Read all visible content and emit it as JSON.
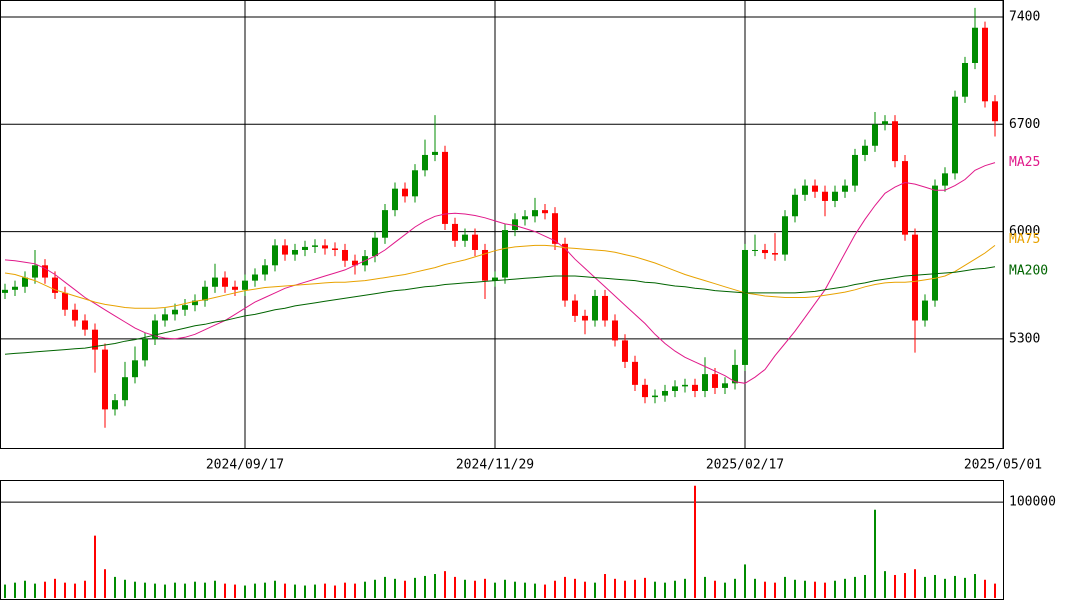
{
  "chart_data": {
    "type": "candlestick",
    "xlim": [
      0,
      100.3
    ],
    "xticks": [
      {
        "value": 24.5,
        "label": "2024/09/17"
      },
      {
        "value": 49.5,
        "label": "2024/11/29"
      },
      {
        "value": 74.5,
        "label": "2025/02/17"
      },
      {
        "value": 100.3,
        "label": "2025/05/01"
      }
    ],
    "ylim": [
      4588,
      7511
    ],
    "yticks": [
      5300,
      6000,
      6700,
      7400
    ],
    "grid": true,
    "up_color": "#008c00",
    "down_color": "#ff0000",
    "candles": {
      "open": [
        5600,
        5620,
        5640,
        5700,
        5780,
        5700,
        5600,
        5490,
        5420,
        5360,
        5230,
        4840,
        4900,
        5050,
        5160,
        5300,
        5420,
        5460,
        5490,
        5520,
        5550,
        5640,
        5700,
        5640,
        5620,
        5680,
        5720,
        5780,
        5910,
        5850,
        5880,
        5900,
        5910,
        5890,
        5880,
        5810,
        5780,
        5840,
        5960,
        6140,
        6280,
        6230,
        6400,
        6500,
        6520,
        6050,
        5940,
        5980,
        5880,
        5680,
        5700,
        6010,
        6080,
        6100,
        6140,
        6120,
        5920,
        5550,
        5450,
        5420,
        5580,
        5420,
        5290,
        5150,
        5000,
        4920,
        4930,
        4960,
        4990,
        5000,
        4960,
        5070,
        4980,
        5010,
        5130,
        5880,
        5880,
        5860,
        5850,
        6100,
        6240,
        6300,
        6260,
        6200,
        6260,
        6300,
        6500,
        6560,
        6700,
        6720,
        6460,
        5980,
        5420,
        5550,
        6300,
        6380,
        6880,
        7100,
        7330,
        6850
      ],
      "high": [
        5660,
        5680,
        5740,
        5880,
        5820,
        5740,
        5640,
        5530,
        5460,
        5400,
        5270,
        4940,
        5150,
        5250,
        5340,
        5460,
        5500,
        5530,
        5560,
        5590,
        5680,
        5790,
        5740,
        5680,
        5720,
        5760,
        5820,
        5950,
        5950,
        5920,
        5940,
        5950,
        5950,
        5930,
        5920,
        5850,
        5880,
        6000,
        6180,
        6320,
        6320,
        6440,
        6600,
        6760,
        6560,
        6090,
        6020,
        6020,
        5920,
        5740,
        6050,
        6120,
        6140,
        6220,
        6180,
        6160,
        5960,
        5590,
        5490,
        5620,
        5620,
        5460,
        5330,
        5190,
        5040,
        4970,
        5000,
        5030,
        5040,
        5040,
        5180,
        5110,
        5050,
        5230,
        5920,
        5980,
        5920,
        5990,
        6140,
        6280,
        6340,
        6340,
        6300,
        6300,
        6340,
        6540,
        6600,
        6780,
        6760,
        6760,
        6500,
        6020,
        5590,
        6340,
        6420,
        6920,
        7140,
        7460,
        7370,
        6890
      ],
      "low": [
        5560,
        5580,
        5600,
        5660,
        5660,
        5560,
        5450,
        5380,
        5320,
        5080,
        4720,
        4800,
        4860,
        5010,
        5120,
        5260,
        5380,
        5420,
        5450,
        5480,
        5510,
        5600,
        5600,
        5580,
        5580,
        5640,
        5680,
        5740,
        5810,
        5810,
        5840,
        5860,
        5850,
        5840,
        5770,
        5720,
        5740,
        5800,
        5920,
        6100,
        6190,
        6190,
        6360,
        6460,
        6010,
        5900,
        5900,
        5840,
        5560,
        5640,
        5660,
        5970,
        6040,
        6060,
        6080,
        5880,
        5510,
        5410,
        5330,
        5380,
        5380,
        5250,
        5110,
        4960,
        4880,
        4880,
        4890,
        4920,
        4950,
        4920,
        4920,
        4940,
        4940,
        4970,
        5090,
        5840,
        5820,
        5810,
        5810,
        6060,
        6200,
        6220,
        6100,
        6160,
        6220,
        6260,
        6460,
        6520,
        6660,
        6420,
        5940,
        5210,
        5380,
        5510,
        6260,
        6340,
        6840,
        7060,
        6810,
        6620
      ],
      "close": [
        5620,
        5640,
        5700,
        5780,
        5700,
        5600,
        5490,
        5420,
        5360,
        5230,
        4840,
        4900,
        5050,
        5160,
        5300,
        5420,
        5460,
        5490,
        5520,
        5550,
        5640,
        5700,
        5640,
        5620,
        5680,
        5720,
        5780,
        5910,
        5850,
        5880,
        5900,
        5910,
        5890,
        5880,
        5810,
        5780,
        5840,
        5960,
        6140,
        6280,
        6230,
        6400,
        6500,
        6520,
        6050,
        5940,
        5980,
        5880,
        5680,
        5700,
        6010,
        6080,
        6100,
        6140,
        6120,
        5920,
        5550,
        5450,
        5420,
        5580,
        5420,
        5290,
        5150,
        5000,
        4920,
        4930,
        4960,
        4990,
        5000,
        4960,
        5070,
        4980,
        5010,
        5130,
        5880,
        5880,
        5860,
        5850,
        6100,
        6240,
        6300,
        6260,
        6200,
        6260,
        6300,
        6500,
        6560,
        6700,
        6720,
        6460,
        5980,
        5420,
        5550,
        6300,
        6380,
        6880,
        7100,
        7330,
        6850,
        6720
      ]
    },
    "moving_averages": [
      {
        "name": "MA25",
        "color": "#e0198a",
        "values": [
          5815,
          5810,
          5800,
          5790,
          5760,
          5720,
          5670,
          5620,
          5570,
          5530,
          5490,
          5450,
          5410,
          5370,
          5340,
          5320,
          5305,
          5300,
          5310,
          5330,
          5360,
          5390,
          5420,
          5460,
          5500,
          5540,
          5570,
          5600,
          5630,
          5650,
          5670,
          5690,
          5710,
          5730,
          5750,
          5780,
          5810,
          5840,
          5880,
          5930,
          5980,
          6030,
          6070,
          6100,
          6115,
          6120,
          6115,
          6105,
          6090,
          6070,
          6050,
          6040,
          6020,
          6000,
          5970,
          5940,
          5890,
          5820,
          5760,
          5700,
          5640,
          5580,
          5520,
          5460,
          5400,
          5330,
          5270,
          5220,
          5180,
          5150,
          5120,
          5090,
          5060,
          5020,
          5010,
          5050,
          5100,
          5190,
          5270,
          5350,
          5440,
          5530,
          5620,
          5740,
          5860,
          5980,
          6080,
          6170,
          6250,
          6290,
          6320,
          6310,
          6290,
          6270,
          6270,
          6300,
          6340,
          6400,
          6430,
          6450
        ]
      },
      {
        "name": "MA75",
        "color": "#e8a200",
        "values": [
          5730,
          5720,
          5700,
          5680,
          5650,
          5620,
          5600,
          5580,
          5560,
          5540,
          5525,
          5515,
          5505,
          5500,
          5500,
          5500,
          5505,
          5515,
          5530,
          5545,
          5555,
          5570,
          5585,
          5600,
          5615,
          5625,
          5635,
          5640,
          5645,
          5650,
          5655,
          5660,
          5665,
          5670,
          5670,
          5675,
          5680,
          5690,
          5700,
          5710,
          5720,
          5735,
          5750,
          5765,
          5785,
          5800,
          5815,
          5835,
          5855,
          5875,
          5890,
          5900,
          5905,
          5910,
          5910,
          5905,
          5895,
          5890,
          5885,
          5880,
          5875,
          5865,
          5850,
          5835,
          5815,
          5795,
          5770,
          5745,
          5720,
          5700,
          5680,
          5660,
          5640,
          5620,
          5600,
          5590,
          5580,
          5575,
          5570,
          5570,
          5570,
          5575,
          5585,
          5595,
          5605,
          5620,
          5640,
          5655,
          5665,
          5670,
          5670,
          5675,
          5685,
          5695,
          5710,
          5740,
          5780,
          5820,
          5860,
          5910
        ]
      },
      {
        "name": "MA200",
        "color": "#006400",
        "values": [
          5200,
          5205,
          5210,
          5215,
          5220,
          5225,
          5230,
          5235,
          5240,
          5250,
          5260,
          5270,
          5285,
          5295,
          5310,
          5325,
          5340,
          5355,
          5370,
          5385,
          5395,
          5410,
          5420,
          5435,
          5450,
          5460,
          5475,
          5490,
          5500,
          5515,
          5525,
          5535,
          5545,
          5555,
          5565,
          5575,
          5585,
          5595,
          5605,
          5615,
          5620,
          5630,
          5640,
          5645,
          5655,
          5660,
          5665,
          5670,
          5675,
          5680,
          5685,
          5690,
          5695,
          5700,
          5705,
          5710,
          5710,
          5710,
          5705,
          5700,
          5695,
          5690,
          5685,
          5680,
          5670,
          5665,
          5655,
          5645,
          5640,
          5630,
          5625,
          5615,
          5610,
          5605,
          5600,
          5600,
          5600,
          5600,
          5600,
          5600,
          5605,
          5610,
          5620,
          5630,
          5640,
          5655,
          5665,
          5680,
          5690,
          5700,
          5710,
          5715,
          5720,
          5725,
          5730,
          5735,
          5745,
          5755,
          5760,
          5770
        ]
      }
    ],
    "volume": {
      "ylim": [
        0,
        123000
      ],
      "yticks": [
        100000
      ],
      "values": [
        14000,
        16000,
        18000,
        15000,
        17000,
        20000,
        16000,
        15000,
        18000,
        65000,
        30000,
        22000,
        19000,
        17000,
        16000,
        15000,
        14000,
        16000,
        15000,
        17000,
        16000,
        18000,
        15000,
        14000,
        13000,
        15000,
        16000,
        18000,
        15000,
        14000,
        13000,
        14000,
        15000,
        13000,
        16000,
        15000,
        17000,
        19000,
        22000,
        20000,
        18000,
        21000,
        23000,
        25000,
        28000,
        22000,
        19000,
        18000,
        20000,
        16000,
        19000,
        17000,
        16000,
        15000,
        14000,
        18000,
        22000,
        20000,
        17000,
        16000,
        25000,
        20000,
        18000,
        19000,
        21000,
        17000,
        16000,
        18000,
        20000,
        117000,
        22000,
        18000,
        16000,
        20000,
        35000,
        20000,
        17000,
        16000,
        22000,
        19000,
        18000,
        17000,
        16000,
        18000,
        20000,
        22000,
        24000,
        92000,
        28000,
        24000,
        26000,
        30000,
        22000,
        24000,
        20000,
        23000,
        21000,
        25000,
        19000,
        15000
      ]
    }
  }
}
